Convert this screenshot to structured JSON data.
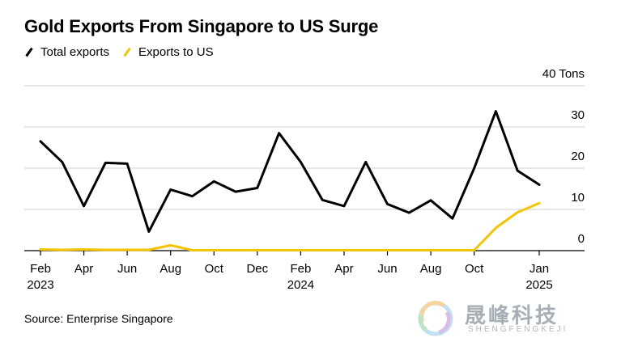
{
  "title": "Gold Exports From Singapore to US Surge",
  "source": "Source: Enterprise Singapore",
  "watermark": {
    "cn": "晟峰科技",
    "en": "SHENGFENGKEJI"
  },
  "colors": {
    "total": "#000000",
    "us": "#f5c400",
    "grid": "#d0d0d0"
  },
  "chart_data": {
    "type": "line",
    "title": "Gold Exports From Singapore to US Surge",
    "ylim": [
      0,
      40
    ],
    "y_ticks": [
      {
        "value": 40,
        "label": "40 Tons"
      },
      {
        "value": 30,
        "label": "30"
      },
      {
        "value": 20,
        "label": "20"
      },
      {
        "value": 10,
        "label": "10"
      },
      {
        "value": 0,
        "label": "0"
      }
    ],
    "x": [
      "2023-02",
      "2023-03",
      "2023-04",
      "2023-05",
      "2023-06",
      "2023-07",
      "2023-08",
      "2023-09",
      "2023-10",
      "2023-11",
      "2023-12",
      "2024-01",
      "2024-02",
      "2024-03",
      "2024-04",
      "2024-05",
      "2024-06",
      "2024-07",
      "2024-08",
      "2024-09",
      "2024-10",
      "2024-11",
      "2024-12",
      "2025-01"
    ],
    "x_ticks": [
      {
        "x": "2023-02",
        "label": "Feb",
        "sub": "2023"
      },
      {
        "x": "2023-04",
        "label": "Apr",
        "sub": ""
      },
      {
        "x": "2023-06",
        "label": "Jun",
        "sub": ""
      },
      {
        "x": "2023-08",
        "label": "Aug",
        "sub": ""
      },
      {
        "x": "2023-10",
        "label": "Oct",
        "sub": ""
      },
      {
        "x": "2023-12",
        "label": "Dec",
        "sub": ""
      },
      {
        "x": "2024-02",
        "label": "Feb",
        "sub": "2024"
      },
      {
        "x": "2024-04",
        "label": "Apr",
        "sub": ""
      },
      {
        "x": "2024-06",
        "label": "Jun",
        "sub": ""
      },
      {
        "x": "2024-08",
        "label": "Aug",
        "sub": ""
      },
      {
        "x": "2024-10",
        "label": "Oct",
        "sub": ""
      },
      {
        "x": "2025-01",
        "label": "Jan",
        "sub": "2025"
      }
    ],
    "series": [
      {
        "name": "Total exports",
        "color": "#000000",
        "values": [
          26.5,
          21.5,
          10.8,
          21.3,
          21.1,
          4.6,
          14.8,
          13.2,
          16.8,
          14.3,
          15.2,
          28.5,
          21.5,
          12.3,
          10.8,
          21.5,
          11.3,
          9.2,
          12.2,
          7.8,
          20.0,
          33.8,
          19.4,
          16.0
        ]
      },
      {
        "name": "Exports to US",
        "color": "#f5c400",
        "values": [
          0.3,
          0.2,
          0.3,
          0.2,
          0.2,
          0.2,
          1.3,
          0.1,
          0.1,
          0.1,
          0.1,
          0.1,
          0.1,
          0.1,
          0.1,
          0.1,
          0.1,
          0.1,
          0.1,
          0.1,
          0.1,
          5.5,
          9.3,
          11.5
        ]
      }
    ],
    "grid": true,
    "legend": "top-left"
  }
}
